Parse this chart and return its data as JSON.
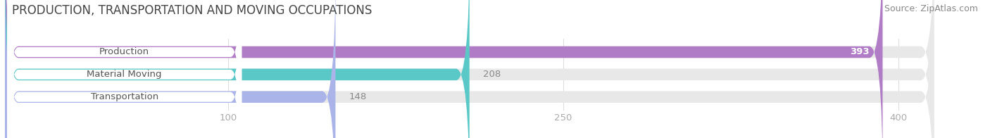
{
  "title": "PRODUCTION, TRANSPORTATION AND MOVING OCCUPATIONS",
  "source": "Source: ZipAtlas.com",
  "categories": [
    "Production",
    "Material Moving",
    "Transportation"
  ],
  "values": [
    393,
    208,
    148
  ],
  "colors": [
    "#b07cc6",
    "#5bc8c8",
    "#aab4e8"
  ],
  "value_inside": [
    true,
    false,
    false
  ],
  "xlim": [
    0,
    430
  ],
  "data_max": 400,
  "xticks": [
    100,
    250,
    400
  ],
  "bar_height": 0.52,
  "title_fontsize": 12,
  "label_fontsize": 9.5,
  "value_fontsize": 9.5,
  "source_fontsize": 9,
  "bg_color": "#ffffff",
  "bar_bg_color": "#e8e8e8",
  "label_text_color": "#555555",
  "value_inside_color": "#ffffff",
  "value_outside_color": "#888888",
  "tick_color": "#aaaaaa"
}
